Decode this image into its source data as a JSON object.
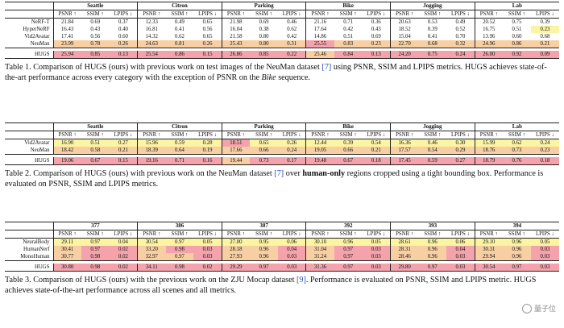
{
  "metrics": [
    "PSNR ↑",
    "SSIM ↑",
    "LPIPS ↓"
  ],
  "tables": [
    {
      "scenes": [
        "Seattle",
        "Citron",
        "Parking",
        "Bike",
        "Jogging",
        "Lab"
      ],
      "rows": [
        {
          "method": "NeRF-T",
          "values": [
            "21.84",
            "0.69",
            "0.37",
            "12.33",
            "0.49",
            "0.65",
            "21.98",
            "0.69",
            "0.46",
            "21.16",
            "0.71",
            "0.36",
            "20.63",
            "0.53",
            "0.49",
            "20.52",
            "0.75",
            "0.39"
          ],
          "colors": [
            0,
            0,
            0,
            0,
            0,
            0,
            0,
            0,
            0,
            0,
            0,
            0,
            0,
            0,
            0,
            0,
            0,
            0
          ]
        },
        {
          "method": "HyperNeRF",
          "values": [
            "16.43",
            "0.43",
            "0.40",
            "16.81",
            "0.41",
            "0.56",
            "16.04",
            "0.38",
            "0.62",
            "17.64",
            "0.42",
            "0.43",
            "18.52",
            "0.39",
            "0.52",
            "16.75",
            "0.51",
            "0.23"
          ],
          "colors": [
            0,
            0,
            0,
            0,
            0,
            0,
            0,
            0,
            0,
            0,
            0,
            0,
            0,
            0,
            0,
            0,
            0,
            3
          ]
        },
        {
          "method": "Vid2Avatar",
          "values": [
            "17.41",
            "0.56",
            "0.60",
            "14.32",
            "0.62",
            "0.65",
            "21.58",
            "0.80",
            "0.42",
            "14.86",
            "0.51",
            "0.69",
            "15.04",
            "0.41",
            "0.70",
            "13.96",
            "0.60",
            "0.68"
          ],
          "colors": [
            0,
            0,
            0,
            0,
            0,
            0,
            0,
            0,
            0,
            0,
            0,
            0,
            0,
            0,
            0,
            0,
            0,
            0
          ]
        },
        {
          "method": "NeuMan",
          "values": [
            "23.99",
            "0.78",
            "0.26",
            "24.63",
            "0.81",
            "0.26",
            "25.43",
            "0.80",
            "0.31",
            "25.55",
            "0.83",
            "0.23",
            "22.70",
            "0.68",
            "0.32",
            "24.96",
            "0.86",
            "0.21"
          ],
          "colors": [
            2,
            2,
            2,
            2,
            2,
            2,
            2,
            2,
            2,
            1,
            2,
            2,
            2,
            2,
            2,
            2,
            2,
            2
          ]
        },
        {
          "method": "HUGS",
          "values": [
            "25.94",
            "0.85",
            "0.13",
            "25.54",
            "0.86",
            "0.15",
            "26.86",
            "0.85",
            "0.22",
            "25.46",
            "0.84",
            "0.13",
            "24.20",
            "0.75",
            "0.24",
            "26.00",
            "0.92",
            "0.09"
          ],
          "colors": [
            1,
            1,
            1,
            1,
            1,
            1,
            1,
            1,
            1,
            2,
            1,
            1,
            1,
            1,
            1,
            1,
            1,
            1
          ]
        }
      ]
    },
    {
      "scenes": [
        "Seattle",
        "Citron",
        "Parking",
        "Bike",
        "Jogging",
        "Lab"
      ],
      "rows": [
        {
          "method": "Vid2Avatar",
          "values": [
            "16.90",
            "0.51",
            "0.27",
            "15.96",
            "0.59",
            "0.28",
            "18.51",
            "0.65",
            "0.26",
            "12.44",
            "0.39",
            "0.54",
            "16.36",
            "0.46",
            "0.30",
            "15.99",
            "0.62",
            "0.24"
          ],
          "colors": [
            3,
            3,
            3,
            3,
            3,
            3,
            1,
            3,
            3,
            3,
            3,
            3,
            3,
            3,
            3,
            3,
            3,
            3
          ]
        },
        {
          "method": "NeuMan",
          "values": [
            "18.42",
            "0.58",
            "0.21",
            "18.39",
            "0.64",
            "0.19",
            "17.66",
            "0.66",
            "0.24",
            "19.05",
            "0.66",
            "0.21",
            "17.57",
            "0.54",
            "0.29",
            "18.76",
            "0.73",
            "0.23"
          ],
          "colors": [
            2,
            2,
            2,
            2,
            2,
            2,
            2,
            2,
            2,
            2,
            2,
            2,
            2,
            2,
            2,
            2,
            2,
            2
          ]
        },
        {
          "method": "HUGS",
          "values": [
            "19.06",
            "0.67",
            "0.15",
            "19.16",
            "0.71",
            "0.16",
            "19.44",
            "0.73",
            "0.17",
            "19.48",
            "0.67",
            "0.18",
            "17.45",
            "0.59",
            "0.27",
            "18.79",
            "0.76",
            "0.18"
          ],
          "colors": [
            1,
            1,
            1,
            1,
            1,
            1,
            2,
            1,
            1,
            1,
            1,
            1,
            1,
            1,
            1,
            1,
            1,
            1
          ]
        }
      ]
    },
    {
      "scenes": [
        "377",
        "386",
        "387",
        "392",
        "393",
        "394"
      ],
      "rows": [
        {
          "method": "NeuralBody",
          "values": [
            "29.11",
            "0.97",
            "0.04",
            "30.54",
            "0.97",
            "0.05",
            "27.00",
            "0.95",
            "0.06",
            "30.10",
            "0.96",
            "0.05",
            "28.61",
            "0.96",
            "0.06",
            "29.10",
            "0.96",
            "0.05"
          ],
          "colors": [
            3,
            3,
            3,
            3,
            3,
            3,
            3,
            3,
            3,
            3,
            3,
            3,
            3,
            3,
            3,
            3,
            3,
            3
          ]
        },
        {
          "method": "HumanNerf",
          "values": [
            "30.41",
            "0.97",
            "0.02",
            "33.20",
            "0.98",
            "0.03",
            "28.18",
            "0.96",
            "0.04",
            "31.04",
            "0.97",
            "0.03",
            "28.31",
            "0.96",
            "0.04",
            "30.31",
            "0.96",
            "0.03"
          ],
          "colors": [
            2,
            1,
            1,
            2,
            1,
            1,
            2,
            2,
            1,
            2,
            1,
            1,
            2,
            2,
            1,
            2,
            2,
            1
          ]
        },
        {
          "method": "MonoHuman",
          "values": [
            "30.77",
            "0.98",
            "0.02",
            "32.97",
            "0.97",
            "0.03",
            "27.93",
            "0.96",
            "0.03",
            "31.24",
            "0.97",
            "0.03",
            "28.46",
            "0.96",
            "0.03",
            "29.94",
            "0.96",
            "0.03"
          ],
          "colors": [
            2,
            1,
            1,
            2,
            2,
            1,
            2,
            2,
            1,
            2,
            1,
            1,
            2,
            2,
            1,
            2,
            2,
            1
          ]
        },
        {
          "method": "HUGS",
          "values": [
            "30.80",
            "0.98",
            "0.02",
            "34.11",
            "0.98",
            "0.02",
            "29.29",
            "0.97",
            "0.03",
            "31.36",
            "0.97",
            "0.03",
            "29.80",
            "0.97",
            "0.03",
            "30.54",
            "0.97",
            "0.03"
          ],
          "colors": [
            1,
            1,
            1,
            1,
            1,
            1,
            1,
            1,
            1,
            1,
            1,
            1,
            1,
            1,
            1,
            1,
            1,
            1
          ]
        }
      ]
    }
  ],
  "captions": {
    "t1": {
      "a": "Table 1. Comparison of HUGS (ours) with previous work on test images of the NeuMan dataset ",
      "ref": "[7]",
      "b": " using PSNR, SSIM and LPIPS metrics. HUGS achieves state-of-the-art performance across every category with the exception of PSNR on the ",
      "i": "Bike",
      "c": " sequence."
    },
    "t2": {
      "a": "Table 2. Comparison of HUGS (ours) with previous work on the NeuMan dataset ",
      "ref": "[7]",
      "b": " over ",
      "bold": "human-only",
      "c": " regions cropped using a tight bounding box. Performance is evaluated on PSNR, SSIM and LPIPS metrics."
    },
    "t3": {
      "a": "Table 3. Comparison of HUGS (ours) with the previous work on the ZJU Mocap dataset ",
      "ref": "[9]",
      "b": ". Performance is evaluated on PSNR, SSIM and LPIPS metric. HUGS achieves state-of-the-art performance across all scenes and all metrics."
    }
  },
  "watermark": "量子位"
}
